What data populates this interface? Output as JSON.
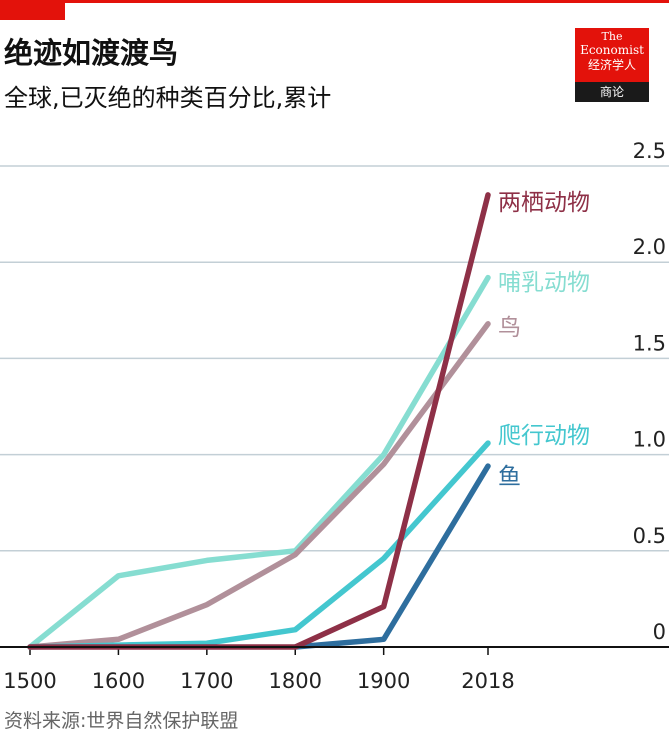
{
  "header": {
    "title": "绝迹如渡渡鸟",
    "subtitle": "全球,已灭绝的种类百分比,累计"
  },
  "logo": {
    "the": "The",
    "economist": "Economist",
    "cn_name": "经济学人",
    "sub": "商论"
  },
  "source": "资料来源:世界自然保护联盟",
  "chart_data": {
    "type": "line",
    "title": "绝迹如渡渡鸟",
    "subtitle": "全球,已灭绝的种类百分比,累计",
    "x": [
      1500,
      1600,
      1700,
      1800,
      1900,
      2018
    ],
    "x_tick_labels": [
      "1500",
      "1600",
      "1700",
      "1800",
      "1900",
      "2018"
    ],
    "y_ticks": [
      0,
      0.5,
      1.0,
      1.5,
      2.0,
      2.5
    ],
    "y_tick_labels": [
      "0",
      "0.5",
      "1.0",
      "1.5",
      "2.0",
      "2.5"
    ],
    "ylim": [
      0,
      2.5
    ],
    "xlim": [
      1500,
      2018
    ],
    "grid": "horizontal",
    "y_axis_side": "right",
    "series": [
      {
        "name": "哺乳动物",
        "color": "#86ddd1",
        "values": [
          0,
          0.37,
          0.45,
          0.5,
          1.0,
          1.92
        ]
      },
      {
        "name": "鸟",
        "color": "#b1909a",
        "values": [
          0,
          0.04,
          0.22,
          0.48,
          0.95,
          1.68
        ]
      },
      {
        "name": "爬行动物",
        "color": "#44c7cf",
        "values": [
          0,
          0.01,
          0.02,
          0.09,
          0.46,
          1.06
        ]
      },
      {
        "name": "鱼",
        "color": "#2e6e9e",
        "values": [
          null,
          null,
          null,
          0,
          0.04,
          0.94
        ]
      },
      {
        "name": "两栖动物",
        "color": "#8e3047",
        "values": [
          0,
          0,
          0,
          0,
          0.21,
          2.35
        ]
      }
    ]
  }
}
